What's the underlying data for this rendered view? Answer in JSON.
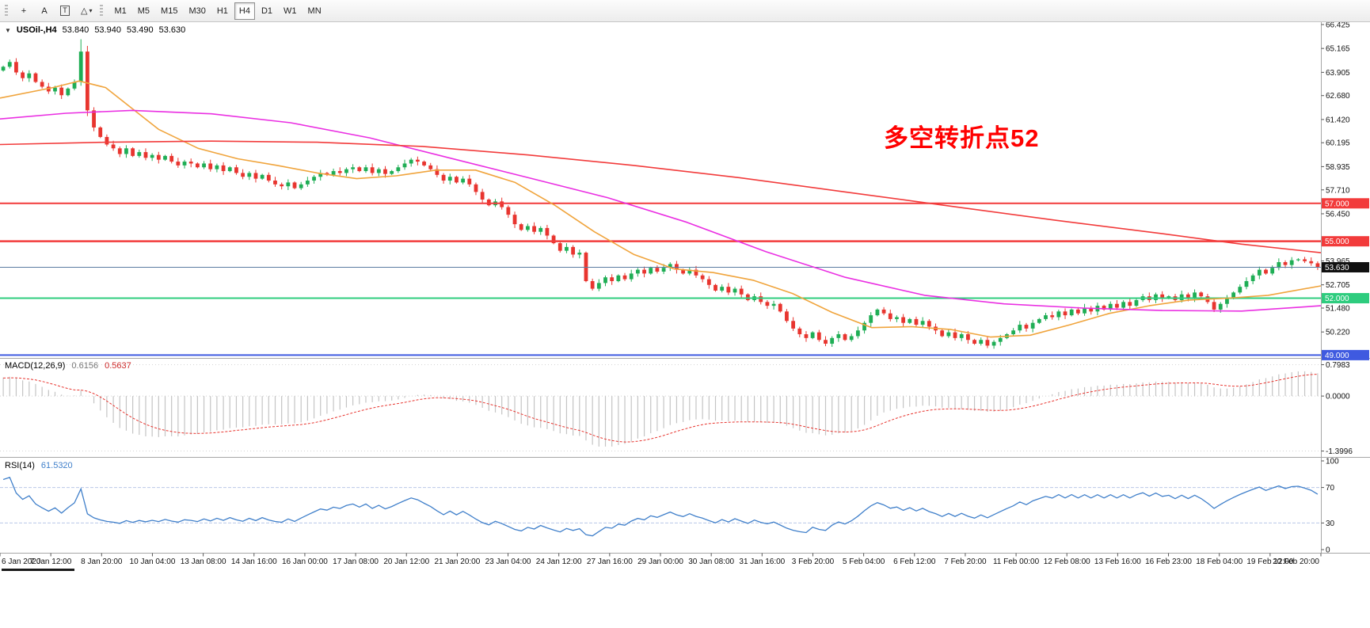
{
  "toolbar": {
    "tools": [
      {
        "name": "crosshair",
        "glyph": "+"
      },
      {
        "name": "text",
        "glyph": "A"
      },
      {
        "name": "text-label",
        "glyph": "T"
      },
      {
        "name": "shapes",
        "glyph": "△",
        "caret": "▾"
      }
    ],
    "timeframes": [
      "M1",
      "M5",
      "M15",
      "M30",
      "H1",
      "H4",
      "D1",
      "W1",
      "MN"
    ],
    "active_timeframe": "H4"
  },
  "chart_header": {
    "collapse_icon": "▼",
    "symbol": "USOil-,H4",
    "open": "53.840",
    "high": "53.940",
    "low": "53.490",
    "close": "53.630"
  },
  "annotation": {
    "text": "多空转折点52",
    "color": "#ff0000"
  },
  "chart_data": {
    "type": "candlestick",
    "symbol": "USOil-",
    "timeframe": "H4",
    "price_range": {
      "min": 48.85,
      "max": 66.55
    },
    "first_open": 64.0,
    "closes": [
      64.2,
      64.45,
      63.9,
      63.6,
      63.85,
      63.4,
      63.15,
      62.9,
      63.1,
      62.7,
      63.05,
      63.4,
      65.0,
      61.9,
      61.0,
      60.5,
      60.1,
      59.9,
      59.6,
      59.9,
      59.5,
      59.7,
      59.4,
      59.55,
      59.3,
      59.5,
      59.2,
      59.0,
      59.2,
      59.1,
      58.9,
      59.1,
      58.8,
      59.0,
      58.7,
      58.9,
      58.6,
      58.4,
      58.6,
      58.3,
      58.5,
      58.2,
      58.0,
      57.9,
      58.1,
      57.8,
      58.0,
      58.2,
      58.4,
      58.6,
      58.5,
      58.7,
      58.6,
      58.8,
      58.9,
      58.7,
      58.9,
      58.6,
      58.8,
      58.55,
      58.7,
      58.9,
      59.1,
      59.3,
      59.2,
      59.0,
      58.8,
      58.5,
      58.2,
      58.4,
      58.1,
      58.3,
      58.0,
      57.6,
      57.2,
      56.9,
      57.1,
      56.8,
      56.4,
      55.9,
      55.6,
      55.8,
      55.5,
      55.7,
      55.3,
      54.9,
      54.5,
      54.7,
      54.3,
      54.4,
      52.9,
      52.5,
      52.8,
      53.1,
      52.9,
      53.2,
      53.0,
      53.3,
      53.5,
      53.3,
      53.6,
      53.4,
      53.6,
      53.8,
      53.5,
      53.3,
      53.5,
      53.2,
      53.0,
      52.7,
      52.4,
      52.6,
      52.3,
      52.5,
      52.2,
      51.9,
      52.1,
      51.8,
      51.6,
      51.7,
      51.3,
      50.8,
      50.4,
      50.1,
      49.9,
      50.2,
      49.8,
      49.6,
      49.9,
      50.1,
      49.8,
      50.0,
      50.3,
      50.7,
      51.1,
      51.4,
      51.2,
      50.9,
      51.0,
      50.7,
      50.9,
      50.6,
      50.8,
      50.5,
      50.3,
      50.0,
      50.2,
      49.9,
      50.1,
      49.8,
      49.6,
      49.8,
      49.5,
      49.7,
      49.9,
      50.1,
      50.3,
      50.6,
      50.4,
      50.7,
      50.9,
      51.1,
      51.0,
      51.3,
      51.1,
      51.4,
      51.2,
      51.5,
      51.3,
      51.6,
      51.4,
      51.7,
      51.5,
      51.8,
      51.6,
      51.9,
      52.1,
      51.9,
      52.2,
      52.0,
      52.1,
      51.9,
      52.2,
      52.0,
      52.3,
      52.1,
      51.8,
      51.4,
      51.7,
      52.0,
      52.3,
      52.6,
      52.9,
      53.2,
      53.5,
      53.3,
      53.6,
      53.9,
      53.75,
      54.0,
      54.05,
      53.95,
      53.84,
      53.63
    ],
    "bar_overrides": {
      "12": [
        63.4,
        65.65,
        63.2,
        65.0
      ],
      "13": [
        65.0,
        65.3,
        61.6,
        61.9
      ],
      "203": [
        53.84,
        53.94,
        53.49,
        53.63
      ]
    },
    "indicator_warmup_closes": [
      61.5,
      61.7,
      61.9,
      62.0,
      62.2,
      62.1,
      62.3,
      62.5,
      62.4,
      62.6,
      62.8,
      62.7,
      62.9,
      63.0,
      63.2,
      63.1,
      63.3,
      63.2,
      63.4,
      63.5,
      63.4,
      63.6,
      63.5,
      63.7,
      63.8,
      63.7,
      63.9,
      64.0,
      64.1,
      64.0
    ],
    "y_axis_ticks": [
      66.425,
      65.165,
      63.905,
      62.68,
      61.42,
      60.195,
      58.935,
      57.71,
      56.45,
      53.965,
      52.705,
      51.48,
      50.22
    ],
    "x_labels": [
      "6 Jan 2020",
      "7 Jan 12:00",
      "8 Jan 20:00",
      "10 Jan 04:00",
      "13 Jan 08:00",
      "14 Jan 16:00",
      "16 Jan 00:00",
      "17 Jan 08:00",
      "20 Jan 12:00",
      "21 Jan 20:00",
      "23 Jan 04:00",
      "24 Jan 12:00",
      "27 Jan 16:00",
      "29 Jan 00:00",
      "30 Jan 08:00",
      "31 Jan 16:00",
      "3 Feb 20:00",
      "5 Feb 04:00",
      "6 Feb 12:00",
      "7 Feb 20:00",
      "11 Feb 00:00",
      "12 Feb 08:00",
      "13 Feb 16:00",
      "16 Feb 23:00",
      "18 Feb 04:00",
      "19 Feb 12:00",
      "20 Feb 20:00"
    ],
    "horizontal_lines": [
      {
        "value": 57.0,
        "label": "57.000",
        "line_color": "#f23b3b",
        "tag_color": "#f23b3b",
        "width": 2
      },
      {
        "value": 55.0,
        "label": "55.000",
        "line_color": "#f23b3b",
        "tag_color": "#f23b3b",
        "width": 2.5
      },
      {
        "value": 53.63,
        "label": "53.630",
        "line_color": "#5b7da2",
        "tag_color": "#111111",
        "width": 1
      },
      {
        "value": 52.0,
        "label": "52.000",
        "line_color": "#2ecc7e",
        "tag_color": "#2ecc7e",
        "width": 2
      },
      {
        "value": 49.0,
        "label": "49.000",
        "line_color": "#3f5ae0",
        "tag_color": "#3f5ae0",
        "width": 2
      }
    ],
    "moving_averages": [
      {
        "name": "fast-orange",
        "color": "#f0a43c",
        "points": [
          [
            0,
            62.55
          ],
          [
            0.04,
            63.1
          ],
          [
            0.06,
            63.45
          ],
          [
            0.08,
            63.1
          ],
          [
            0.1,
            62.0
          ],
          [
            0.12,
            60.9
          ],
          [
            0.15,
            59.9
          ],
          [
            0.18,
            59.35
          ],
          [
            0.21,
            59.0
          ],
          [
            0.24,
            58.6
          ],
          [
            0.27,
            58.3
          ],
          [
            0.3,
            58.45
          ],
          [
            0.33,
            58.75
          ],
          [
            0.36,
            58.75
          ],
          [
            0.39,
            58.1
          ],
          [
            0.42,
            56.9
          ],
          [
            0.45,
            55.5
          ],
          [
            0.48,
            54.3
          ],
          [
            0.51,
            53.55
          ],
          [
            0.54,
            53.35
          ],
          [
            0.57,
            52.95
          ],
          [
            0.6,
            52.25
          ],
          [
            0.63,
            51.25
          ],
          [
            0.66,
            50.45
          ],
          [
            0.69,
            50.5
          ],
          [
            0.72,
            50.35
          ],
          [
            0.75,
            49.95
          ],
          [
            0.78,
            50.05
          ],
          [
            0.81,
            50.6
          ],
          [
            0.84,
            51.2
          ],
          [
            0.87,
            51.6
          ],
          [
            0.9,
            51.9
          ],
          [
            0.93,
            52.0
          ],
          [
            0.96,
            52.15
          ],
          [
            1,
            52.65
          ]
        ]
      },
      {
        "name": "medium-magenta",
        "color": "#ea2fe2",
        "points": [
          [
            0,
            61.45
          ],
          [
            0.05,
            61.75
          ],
          [
            0.1,
            61.9
          ],
          [
            0.16,
            61.72
          ],
          [
            0.22,
            61.25
          ],
          [
            0.28,
            60.45
          ],
          [
            0.34,
            59.4
          ],
          [
            0.4,
            58.35
          ],
          [
            0.46,
            57.3
          ],
          [
            0.52,
            56.0
          ],
          [
            0.58,
            54.45
          ],
          [
            0.64,
            53.1
          ],
          [
            0.7,
            52.15
          ],
          [
            0.76,
            51.7
          ],
          [
            0.82,
            51.48
          ],
          [
            0.88,
            51.35
          ],
          [
            0.94,
            51.32
          ],
          [
            1,
            51.6
          ]
        ]
      },
      {
        "name": "slow-red",
        "color": "#f23b3b",
        "points": [
          [
            0,
            60.1
          ],
          [
            0.08,
            60.22
          ],
          [
            0.16,
            60.28
          ],
          [
            0.24,
            60.22
          ],
          [
            0.32,
            60.0
          ],
          [
            0.4,
            59.55
          ],
          [
            0.48,
            59.0
          ],
          [
            0.56,
            58.35
          ],
          [
            0.64,
            57.6
          ],
          [
            0.72,
            56.85
          ],
          [
            0.8,
            56.1
          ],
          [
            0.88,
            55.4
          ],
          [
            0.94,
            54.85
          ],
          [
            1,
            54.4
          ]
        ]
      }
    ],
    "up_color": "#1fae55",
    "down_color": "#e8352f"
  },
  "macd": {
    "label": "MACD(12,26,9)",
    "value_main": "0.6156",
    "value_signal": "0.5637",
    "fast": 12,
    "slow": 26,
    "signal": 9,
    "axis_ticks": [
      {
        "value": 0.7983,
        "label": "0.7983"
      },
      {
        "value": 0,
        "label": "0.0000"
      },
      {
        "value": -1.3996,
        "label": "-1.3996"
      }
    ],
    "range": {
      "min": -1.55,
      "max": 0.95
    },
    "histogram_color": "#c4c4c4",
    "signal_color": "#e8352f"
  },
  "rsi": {
    "label": "RSI(14)",
    "value": "61.5320",
    "period": 14,
    "levels": [
      70,
      30
    ],
    "axis_ticks": [
      {
        "value": 100,
        "label": "100"
      },
      {
        "value": 70,
        "label": "70"
      },
      {
        "value": 30,
        "label": "30"
      },
      {
        "value": 0,
        "label": "0"
      }
    ],
    "range": {
      "min": 0,
      "max": 100
    },
    "line_color": "#3f7fca",
    "level_color": "#b9c8e8"
  },
  "colors": {
    "background": "#ffffff",
    "panel_border": "#a6a6a6",
    "axis_text": "#111111",
    "scrollbar_thumb": "#1a1a1a"
  }
}
